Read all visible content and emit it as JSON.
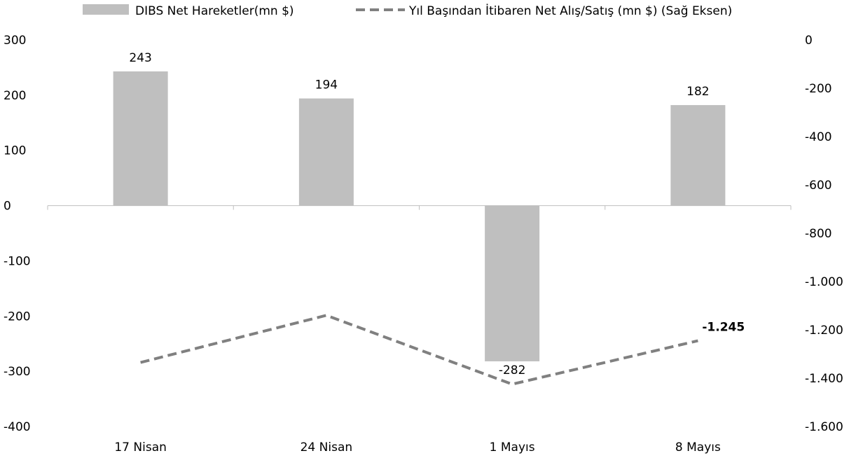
{
  "chart_data": {
    "type": "bar",
    "categories": [
      "17 Nisan",
      "24 Nisan",
      "1 Mayıs",
      "8 Mayıs"
    ],
    "series": [
      {
        "name": "DIBS Net Hareketler(mn $)",
        "kind": "bar",
        "axis": "left",
        "values": [
          243,
          194,
          -282,
          182
        ],
        "data_labels": [
          "243",
          "194",
          "-282",
          "182"
        ],
        "color": "#bfbfbf"
      },
      {
        "name": "Yıl Başından İtibaren Net Alış/Satış (mn $) (Sağ Eksen)",
        "kind": "line",
        "style": "dashed",
        "axis": "right",
        "values": [
          -1335,
          -1140,
          -1425,
          -1245
        ],
        "data_labels": [
          "",
          "",
          "",
          "-1.245"
        ],
        "color": "#808080"
      }
    ],
    "left_axis": {
      "ylim": [
        -400,
        300
      ],
      "ticks": [
        300,
        200,
        100,
        0,
        -100,
        -200,
        -300,
        -400
      ],
      "tick_labels": [
        "300",
        "200",
        "100",
        "0",
        "-100",
        "-200",
        "-300",
        "-400"
      ]
    },
    "right_axis": {
      "ylim": [
        -1600,
        0
      ],
      "ticks": [
        0,
        -200,
        -400,
        -600,
        -800,
        -1000,
        -1200,
        -1400,
        -1600
      ],
      "tick_labels": [
        "0",
        "-200",
        "-400",
        "-600",
        "-800",
        "-1.000",
        "-1.200",
        "-1.400",
        "-1.600"
      ]
    },
    "legend": "top",
    "grid": false,
    "title": "",
    "xlabel": "",
    "ylabel": ""
  }
}
